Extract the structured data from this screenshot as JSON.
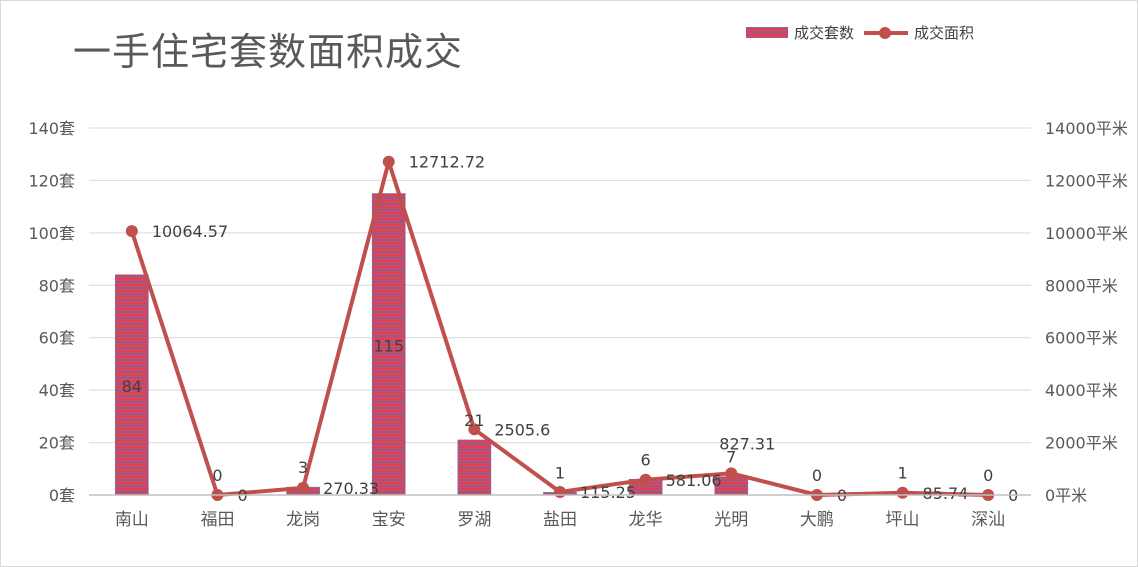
{
  "chart_data": {
    "type": "bar",
    "title": "一手住宅套数面积成交",
    "categories": [
      "南山",
      "福田",
      "龙岗",
      "宝安",
      "罗湖",
      "盐田",
      "龙华",
      "光明",
      "大鹏",
      "坪山",
      "深汕"
    ],
    "series": [
      {
        "name": "成交套数",
        "type": "bar",
        "axis": "left",
        "values": [
          84,
          0,
          3,
          115,
          21,
          1,
          6,
          7,
          0,
          1,
          0
        ]
      },
      {
        "name": "成交面积",
        "type": "line",
        "axis": "right",
        "values": [
          10064.57,
          0,
          270.33,
          12712.72,
          2505.6,
          115.25,
          581.06,
          827.31,
          0,
          85.74,
          0
        ]
      }
    ],
    "bar_labels": [
      "84",
      "0",
      "3",
      "115",
      "21",
      "1",
      "6",
      "7",
      "0",
      "1",
      "0"
    ],
    "line_labels": [
      "10064.57",
      "0",
      "270.33",
      "12712.72",
      "2505.6",
      "115.25",
      "581.06",
      "827.31",
      "0",
      "85.74",
      "0"
    ],
    "y_left": {
      "ylim": [
        0,
        140
      ],
      "ticks": [
        0,
        20,
        40,
        60,
        80,
        100,
        120,
        140
      ],
      "tick_labels": [
        "0套",
        "20套",
        "40套",
        "60套",
        "80套",
        "100套",
        "120套",
        "140套"
      ]
    },
    "y_right": {
      "ylim": [
        0,
        14000
      ],
      "ticks": [
        0,
        2000,
        4000,
        6000,
        8000,
        10000,
        12000,
        14000
      ],
      "tick_labels": [
        "0平米",
        "2000平米",
        "4000平米",
        "6000平米",
        "8000平米",
        "10000平米",
        "12000平米",
        "14000平米"
      ]
    },
    "grid": true,
    "legend_position": "top-right",
    "colors": {
      "bar_stripe_a": "#e63c4c",
      "bar_stripe_b": "#7b6aa6",
      "line": "#c0504d",
      "grid": "#d9d9d9",
      "text": "#595959"
    }
  }
}
